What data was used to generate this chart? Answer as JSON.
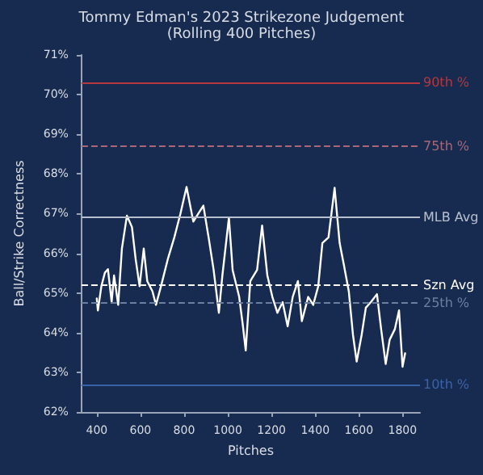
{
  "chart_data": {
    "type": "line",
    "title": "Tommy Edman's 2023 Strikezone Judgement",
    "subtitle": "(Rolling 400 Pitches)",
    "xlabel": "Pitches",
    "ylabel": "Ball/Strike Correctness",
    "x": [
      400,
      405,
      421,
      437,
      451,
      468,
      479,
      498,
      515,
      538,
      561,
      578,
      596,
      615,
      631,
      655,
      671,
      694,
      725,
      755,
      783,
      811,
      842,
      865,
      888,
      912,
      935,
      959,
      975,
      1005,
      1022,
      1052,
      1068,
      1082,
      1103,
      1134,
      1157,
      1181,
      1204,
      1227,
      1251,
      1274,
      1297,
      1321,
      1339,
      1368,
      1391,
      1414,
      1433,
      1461,
      1489,
      1512,
      1531,
      1554,
      1573,
      1590,
      1613,
      1632,
      1655,
      1683,
      1702,
      1723,
      1741,
      1765,
      1784,
      1800,
      1812
    ],
    "series": [
      {
        "color": "#ffffff",
        "values": [
          64.86,
          64.56,
          65.17,
          65.51,
          65.6,
          64.77,
          65.44,
          64.7,
          66.12,
          66.95,
          66.66,
          65.85,
          65.17,
          66.12,
          65.3,
          65.04,
          64.7,
          65.17,
          65.85,
          66.4,
          67.0,
          67.67,
          66.8,
          67.0,
          67.2,
          66.4,
          65.58,
          64.5,
          65.44,
          66.9,
          65.58,
          64.9,
          64.22,
          63.55,
          65.3,
          65.58,
          66.7,
          65.44,
          64.9,
          64.5,
          64.77,
          64.16,
          64.9,
          65.3,
          64.29,
          64.9,
          64.7,
          65.17,
          66.26,
          66.4,
          67.65,
          66.26,
          65.72,
          65.04,
          63.95,
          63.27,
          63.95,
          64.63,
          64.77,
          64.97,
          64.09,
          63.21,
          63.82,
          64.09,
          64.56,
          63.14,
          63.48
        ]
      }
    ],
    "xlim": [
      330,
      1880
    ],
    "xticks": [
      400,
      600,
      800,
      1000,
      1200,
      1400,
      1600,
      1800
    ],
    "ylim": [
      62,
      71
    ],
    "yticks": [
      {
        "value": 62,
        "label": "62%"
      },
      {
        "value": 63,
        "label": "63%"
      },
      {
        "value": 64,
        "label": "64%"
      },
      {
        "value": 65,
        "label": "65%"
      },
      {
        "value": 66,
        "label": "66%"
      },
      {
        "value": 67,
        "label": "67%"
      },
      {
        "value": 68,
        "label": "68%"
      },
      {
        "value": 69,
        "label": "69%"
      },
      {
        "value": 70,
        "label": "70%"
      },
      {
        "value": 71,
        "label": "71%"
      }
    ],
    "ref_lines": [
      {
        "axis": "y",
        "value": 70.3,
        "label": "90th %",
        "color": "#b5383f",
        "line_style": "solid"
      },
      {
        "axis": "y",
        "value": 68.7,
        "label": "75th %",
        "color": "#a86878",
        "line_style": "dashed"
      },
      {
        "axis": "y",
        "value": 66.9,
        "label": "MLB Avg",
        "color": "#b8c0d0",
        "line_style": "solid"
      },
      {
        "axis": "y",
        "value": 65.2,
        "label": "Szn Avg",
        "color": "#ffffff",
        "line_style": "dashed"
      },
      {
        "axis": "y",
        "value": 64.75,
        "label": "25th %",
        "color": "#6c7fa0",
        "line_style": "dashed"
      },
      {
        "axis": "y",
        "value": 62.7,
        "label": "10th %",
        "color": "#3a64a8",
        "line_style": "solid"
      }
    ],
    "grid": false,
    "marker": "none",
    "line_style": "solid"
  }
}
